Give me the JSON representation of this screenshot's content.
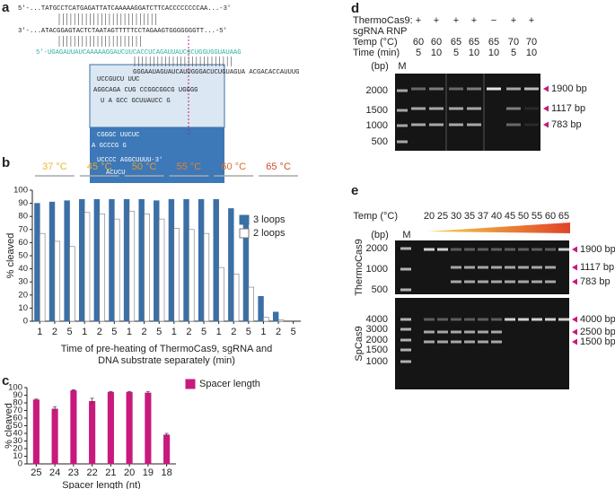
{
  "panel_labels": [
    "a",
    "b",
    "c",
    "d",
    "e"
  ],
  "panel_a": {
    "strand_top": "5'-...TATGCCTCATGAGATTATCAAAAAGGATCTTCACCCCCCCCAA...-3'",
    "strand_bottom": "3'-...ATACGGAGTACTCTAATAGTTTTTCCTAGAAGTGGGGGGGTT...-5'",
    "guide": "5'-UGAGAUUAUCAAAAAGGAUCUUCACCUCAGAUUAUCGCUGGUGGUAUAAG",
    "structure": [
      "GGGAAUAGUAUCAUUGGGACUCUGUAGUA ACGACACCAUUUG",
      "UCCGUCU  UUC",
      "AGGCAGA  CUG  CCGGCGGCG UGGGG",
      "U  A  GCC GCUUAUCC G",
      "CGGGC   UUCUC",
      "A   GCCCG  G",
      "UCCCC    AGGCUUUU-3'",
      "ACUCU"
    ]
  },
  "chart_data": [
    {
      "type": "bar",
      "ylabel": "% cleaved",
      "xlabel": [
        "Time of pre-heating of ThermoCas9, sgRNA and",
        "DNA substrate separately (min)"
      ],
      "groups": [
        {
          "label": "37 °C",
          "color": "#e3b935"
        },
        {
          "label": "45 °C",
          "color": "#e8a92e"
        },
        {
          "label": "50 °C",
          "color": "#e69a2c"
        },
        {
          "label": "55 °C",
          "color": "#e3862a"
        },
        {
          "label": "60 °C",
          "color": "#dd6b28"
        },
        {
          "label": "65 °C",
          "color": "#cf4e26"
        }
      ],
      "categories": [
        "1",
        "2",
        "5",
        "1",
        "2",
        "5",
        "1",
        "2",
        "5",
        "1",
        "2",
        "5",
        "1",
        "2",
        "5",
        "1",
        "2",
        "5"
      ],
      "series": [
        {
          "name": "3 loops",
          "color": "#3b6fa6",
          "values": [
            90,
            91,
            92,
            93,
            93,
            93,
            93,
            93,
            92,
            93,
            93,
            93,
            93,
            86,
            74,
            19,
            7,
            0
          ]
        },
        {
          "name": "2 loops",
          "color": "#ffffff",
          "values": [
            67,
            61,
            57,
            83,
            82,
            78,
            84,
            82,
            78,
            71,
            70,
            67,
            41,
            36,
            26,
            3,
            1,
            0
          ]
        }
      ],
      "ylim": [
        0,
        100
      ],
      "yticks": [
        0,
        10,
        20,
        30,
        40,
        50,
        60,
        70,
        80,
        90,
        100
      ],
      "legend": "upper right"
    },
    {
      "type": "bar",
      "ylabel": "% cleaved",
      "xlabel": "Spacer length (nt)",
      "categories": [
        "25",
        "24",
        "23",
        "22",
        "21",
        "20",
        "19",
        "18"
      ],
      "series": [
        {
          "name": "Spacer length",
          "color": "#c8197d",
          "values": [
            84,
            72,
            96,
            82,
            94,
            94,
            93,
            38
          ],
          "errors": [
            1,
            3,
            1,
            4,
            1,
            1,
            2,
            2
          ]
        }
      ],
      "ylim": [
        0,
        100
      ],
      "yticks": [
        0,
        10,
        20,
        30,
        40,
        50,
        60,
        70,
        80,
        90,
        100
      ],
      "legend": "right"
    }
  ],
  "panel_d": {
    "row_labels": [
      "ThermoCas9:",
      "sgRNA RNP",
      "Temp (°C)",
      "Time (min)"
    ],
    "signs": [
      "+",
      "+",
      "+",
      "+",
      "−",
      "+",
      "+"
    ],
    "temps": [
      60,
      60,
      65,
      65,
      65,
      70,
      70
    ],
    "times": [
      5,
      10,
      5,
      10,
      10,
      5,
      10
    ],
    "unit": "(bp)",
    "marker": "M",
    "ladder": [
      2000,
      1500,
      1000,
      500
    ],
    "band_labels": [
      "1900 bp",
      "1117 bp",
      "783 bp"
    ]
  },
  "panel_e": {
    "temp_label": "Temp (°C)",
    "temps": [
      20,
      25,
      30,
      35,
      37,
      40,
      45,
      50,
      55,
      60,
      65
    ],
    "unit": "(bp)",
    "marker": "M",
    "gels": [
      {
        "name": "ThermoCas9",
        "ladder": [
          2000,
          1000,
          500
        ],
        "band_labels": [
          "1900 bp",
          "1117 bp",
          "783 bp"
        ]
      },
      {
        "name": "SpCas9",
        "ladder": [
          4000,
          3000,
          2000,
          1500,
          1000
        ],
        "band_labels": [
          "4000 bp",
          "2500 bp",
          "1500 bp"
        ]
      }
    ]
  }
}
